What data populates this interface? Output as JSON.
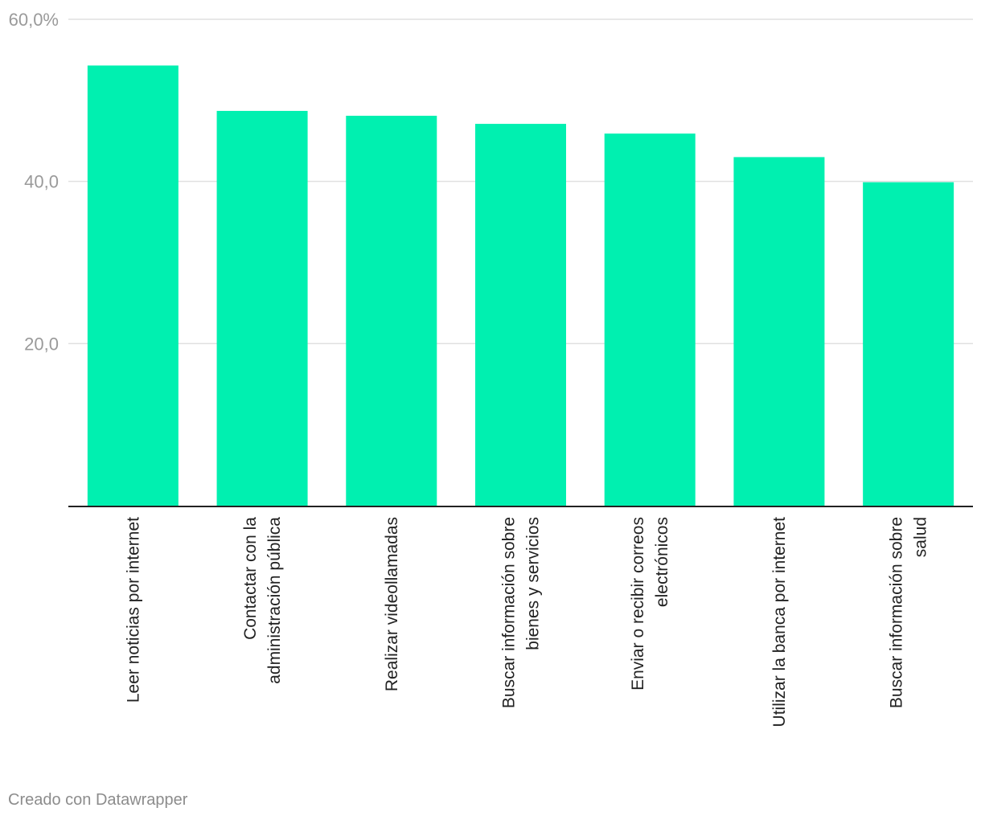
{
  "chart_data": {
    "type": "bar",
    "categories": [
      [
        "Leer noticias por internet"
      ],
      [
        "Contactar con la",
        "administración pública"
      ],
      [
        "Realizar videollamadas"
      ],
      [
        "Buscar información sobre",
        "bienes y servicios"
      ],
      [
        "Enviar o recibir correos",
        "electrónicos"
      ],
      [
        "Utilizar la banca por internet"
      ],
      [
        "Buscar información sobre",
        "salud"
      ]
    ],
    "values": [
      54.3,
      48.7,
      48.1,
      47.1,
      45.9,
      43.0,
      39.9
    ],
    "ylim": [
      0,
      60
    ],
    "y_ticks": [
      {
        "value": 60,
        "label": "60,0%"
      },
      {
        "value": 40,
        "label": "40,0"
      },
      {
        "value": 20,
        "label": "20,0"
      }
    ],
    "grid": true,
    "title": "",
    "xlabel": "",
    "ylabel": "",
    "colors": {
      "bar": "#00f0b0",
      "grid": "#e0e0e0",
      "baseline": "#222222"
    }
  },
  "footer": {
    "credit": "Creado con Datawrapper"
  }
}
